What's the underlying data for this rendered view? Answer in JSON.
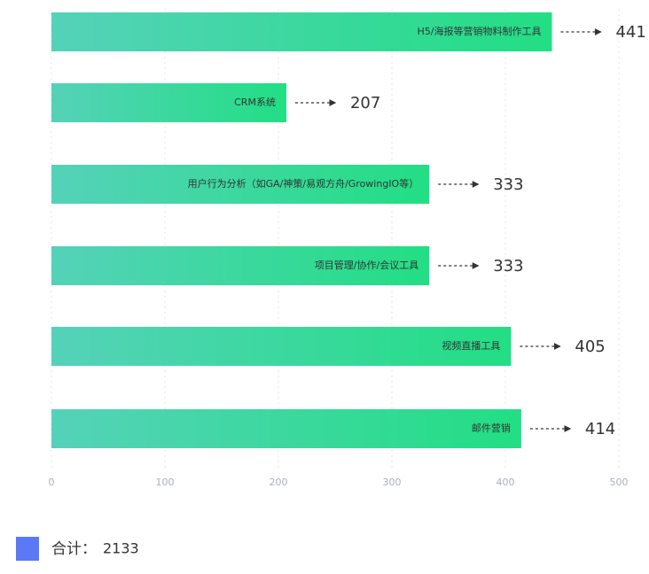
{
  "chart_data": {
    "type": "hbar",
    "categories": [
      "H5/海报等营销物料制作工具",
      "CRM系统",
      "用户行为分析（如GA/神策/易观方舟/GrowingIO等）",
      "项目管理/协作/会议工具",
      "视频直播工具",
      "邮件营销"
    ],
    "values": [
      441,
      207,
      333,
      333,
      405,
      414
    ],
    "colors": [
      "#55d2b9",
      "#22de84"
    ],
    "xlim": [
      0,
      500
    ],
    "xticks": [
      0,
      100,
      200,
      300,
      400,
      500
    ],
    "grid": true,
    "legend": {
      "label": "合计：",
      "value": 2133,
      "color": "#5b78f7",
      "position": "bottom-left"
    }
  }
}
